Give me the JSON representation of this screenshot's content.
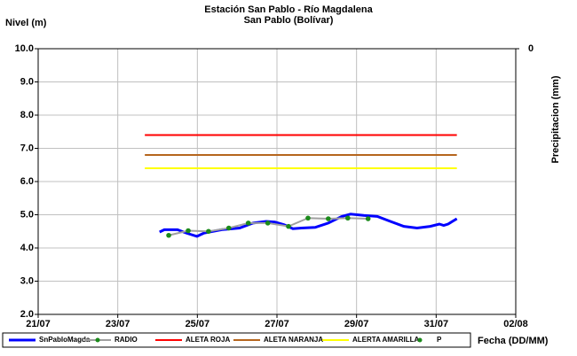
{
  "chart_data": {
    "type": "line",
    "title": "Estación San Pablo - Río Magdalena",
    "subtitle": "San Pablo (Bolívar)",
    "y_label": "Nivel (m)",
    "y2_label": "Precipitacion (mm)",
    "x_label": "Fecha (DD/MM)",
    "xlim": [
      0,
      12
    ],
    "xticks": [
      {
        "value": 0,
        "label": "21/07"
      },
      {
        "value": 2,
        "label": "23/07"
      },
      {
        "value": 4,
        "label": "25/07"
      },
      {
        "value": 6,
        "label": "27/07"
      },
      {
        "value": 8,
        "label": "29/07"
      },
      {
        "value": 10,
        "label": "31/07"
      },
      {
        "value": 12,
        "label": "02/08"
      }
    ],
    "ylim": [
      2,
      10
    ],
    "yticks": [
      {
        "value": 2,
        "label": "2.0"
      },
      {
        "value": 3,
        "label": "3.0"
      },
      {
        "value": 4,
        "label": "4.0"
      },
      {
        "value": 5,
        "label": "5.0"
      },
      {
        "value": 6,
        "label": "6.0"
      },
      {
        "value": 7,
        "label": "7.0"
      },
      {
        "value": 8,
        "label": "8.0"
      },
      {
        "value": 9,
        "label": "9.0"
      },
      {
        "value": 10,
        "label": "10.0"
      }
    ],
    "y2ticks": [
      0
    ],
    "grid": true,
    "series": [
      {
        "name": "SnPabloMagda",
        "color": "#0000ff",
        "marker": false,
        "x": [
          3.05,
          3.17,
          3.5,
          3.72,
          3.99,
          4.17,
          4.61,
          5.06,
          5.4,
          5.73,
          5.95,
          6.18,
          6.4,
          6.62,
          6.96,
          7.29,
          7.63,
          7.85,
          8.18,
          8.52,
          8.85,
          9.19,
          9.52,
          9.85,
          10.08,
          10.19,
          10.3,
          10.52
        ],
        "values": [
          4.48,
          4.55,
          4.55,
          4.45,
          4.35,
          4.45,
          4.55,
          4.6,
          4.75,
          4.8,
          4.78,
          4.7,
          4.58,
          4.6,
          4.62,
          4.75,
          4.95,
          5.02,
          4.98,
          4.95,
          4.8,
          4.65,
          4.6,
          4.65,
          4.72,
          4.68,
          4.72,
          4.88
        ]
      },
      {
        "name": "RADIO",
        "color": "#a0a0a0",
        "marker": true,
        "marker_color": "#1a8a1a",
        "x": [
          3.28,
          3.77,
          4.28,
          4.79,
          5.28,
          5.77,
          6.29,
          6.78,
          7.29,
          7.78,
          8.29
        ],
        "values": [
          4.38,
          4.52,
          4.5,
          4.6,
          4.75,
          4.75,
          4.65,
          4.9,
          4.88,
          4.9,
          4.88
        ]
      },
      {
        "name": "ALETA ROJA",
        "color": "#ff0000",
        "marker": false,
        "x": [
          2.68,
          10.52
        ],
        "values": [
          7.4,
          7.4
        ]
      },
      {
        "name": "ALETA NARANJA",
        "color": "#b5651d",
        "marker": false,
        "x": [
          2.68,
          10.52
        ],
        "values": [
          6.8,
          6.8
        ]
      },
      {
        "name": "ALERTA AMARILLA",
        "color": "#ffff00",
        "marker": false,
        "x": [
          2.68,
          10.52
        ],
        "values": [
          6.4,
          6.4
        ]
      },
      {
        "name": "P",
        "color": "#1a8a1a",
        "marker": true,
        "dot_only": true,
        "x": [],
        "values": []
      }
    ]
  }
}
